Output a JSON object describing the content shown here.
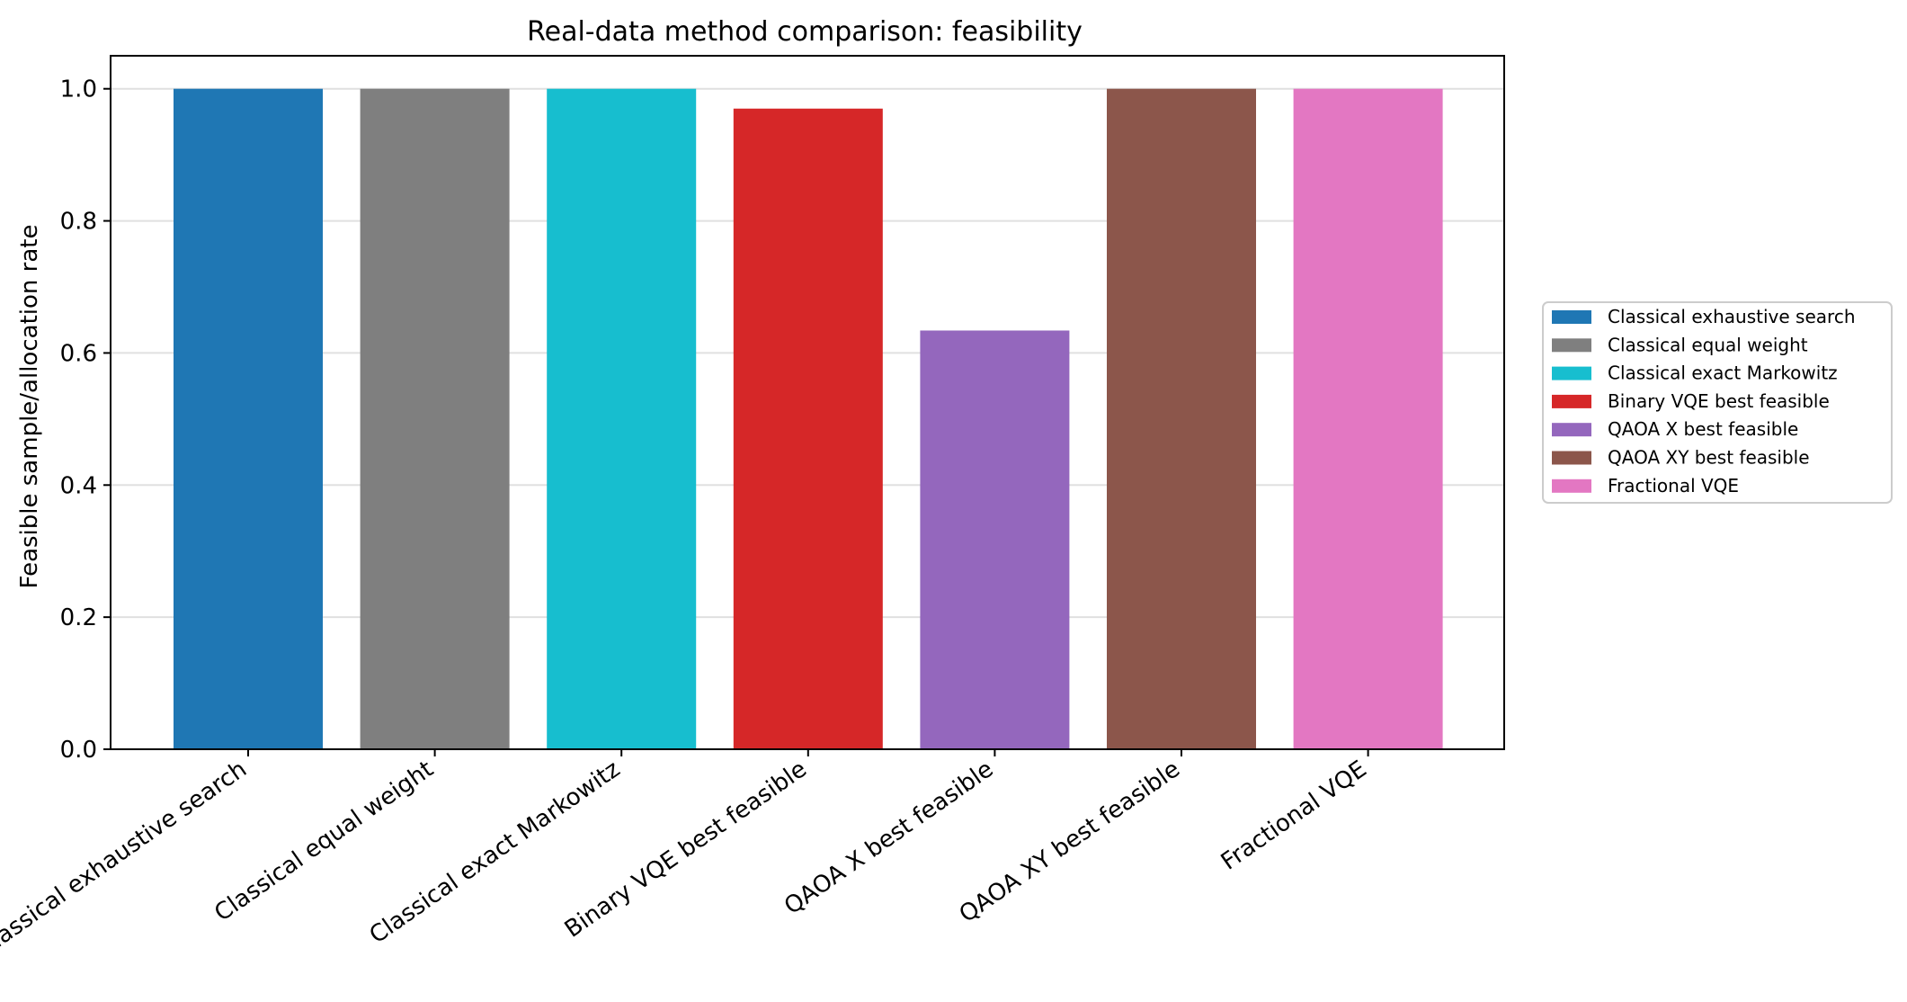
{
  "chart_data": {
    "type": "bar",
    "title": "Real-data method comparison: feasibility",
    "xlabel": "",
    "ylabel": "Feasible sample/allocation rate",
    "categories": [
      "Classical exhaustive search",
      "Classical equal weight",
      "Classical exact Markowitz",
      "Binary VQE best feasible",
      "QAOA X best feasible",
      "QAOA XY best feasible",
      "Fractional VQE"
    ],
    "values": [
      1.0,
      1.0,
      1.0,
      0.97,
      0.634,
      1.0,
      1.0
    ],
    "colors": [
      "#1f77b4",
      "#7f7f7f",
      "#17becf",
      "#d62728",
      "#9467bd",
      "#8c564b",
      "#e377c2"
    ],
    "ylim": [
      0,
      1.05
    ],
    "yticks": [
      0.0,
      0.2,
      0.4,
      0.6,
      0.8,
      1.0
    ],
    "ytick_labels": [
      "0.0",
      "0.2",
      "0.4",
      "0.6",
      "0.8",
      "1.0"
    ],
    "grid": "horizontal",
    "legend": {
      "placement": "right, outside plot",
      "entries": [
        "Classical exhaustive search",
        "Classical equal weight",
        "Classical exact Markowitz",
        "Binary VQE best feasible",
        "QAOA X best feasible",
        "QAOA XY best feasible",
        "Fractional VQE"
      ]
    }
  }
}
